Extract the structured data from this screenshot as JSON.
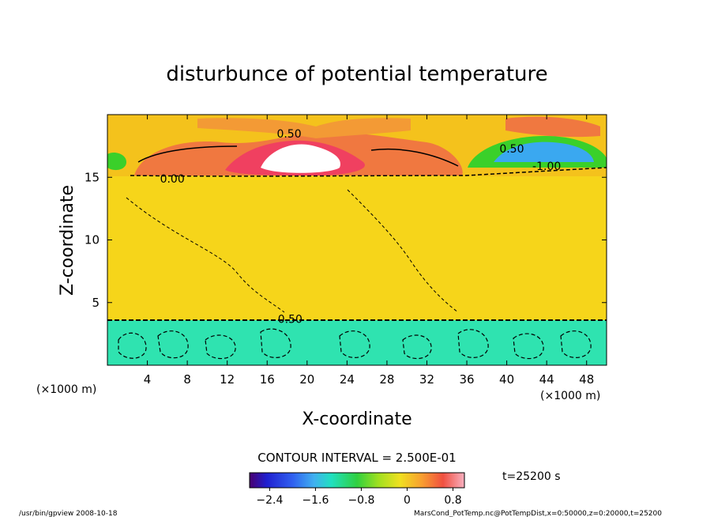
{
  "chart_data": {
    "type": "heatmap",
    "title": "disturbunce of potential temperature",
    "xlabel": "X-coordinate",
    "ylabel": "Z-coordinate",
    "x_unit": "(×1000 m)",
    "y_unit": "(×1000 m)",
    "xlim": [
      0,
      50
    ],
    "ylim": [
      0,
      20
    ],
    "x_ticks": [
      4,
      8,
      12,
      16,
      20,
      24,
      28,
      32,
      36,
      40,
      44,
      48
    ],
    "y_ticks": [
      5,
      10,
      15
    ],
    "x_tick_labels": [
      "4",
      "8",
      "12",
      "16",
      "20",
      "24",
      "28",
      "32",
      "36",
      "40",
      "44",
      "48"
    ],
    "y_tick_labels": [
      "5",
      "10",
      "15"
    ],
    "contour_interval_label": "CONTOUR INTERVAL = 2.500E-01",
    "time_label": "t=25200 s",
    "colorbar": {
      "min": -2.75,
      "max": 1.0,
      "tick_values": [
        -2.4,
        -1.6,
        -0.8,
        0,
        0.8
      ],
      "tick_labels": [
        "−2.4",
        "−1.6",
        "−0.8",
        "0",
        "0.8"
      ]
    },
    "contour_labels": [
      {
        "text": "0.50",
        "x": 18.2,
        "z": 18.5
      },
      {
        "text": "0.00",
        "x": 6.5,
        "z": 14.9
      },
      {
        "text": "0.50",
        "x": 40.5,
        "z": 17.3
      },
      {
        "text": "-1.00",
        "x": 44.0,
        "z": 15.9
      },
      {
        "text": "0.50",
        "x": 18.3,
        "z": 3.7
      }
    ],
    "fields": [
      {
        "region": "lower layer",
        "z_range": [
          0,
          3.8
        ],
        "value": -0.8
      },
      {
        "region": "mid layer",
        "z_range": [
          3.8,
          15.2
        ],
        "value": 0.0
      },
      {
        "region": "upper layer",
        "z_range": [
          15.2,
          20
        ],
        "value": 0.3
      },
      {
        "region": "upper hot core",
        "x": 20,
        "z": 16.8,
        "value": 0.9
      },
      {
        "region": "upper cold core",
        "x": 43.5,
        "z": 17.0,
        "value": -1.8
      }
    ]
  },
  "footer": {
    "left": "/usr/bin/gpview   2008-10-18",
    "right": "MarsCond_PotTemp.nc@PotTempDist,x=0:50000,z=0:20000,t=25200"
  },
  "colors": {
    "lower": "#2fe3b0",
    "mid": "#f6d51a",
    "upper_warm": "#f07840",
    "hot": "#f04060",
    "hot_core": "#ffffff",
    "cold": "#3ad02a",
    "cold_core": "#3aa8f0"
  }
}
